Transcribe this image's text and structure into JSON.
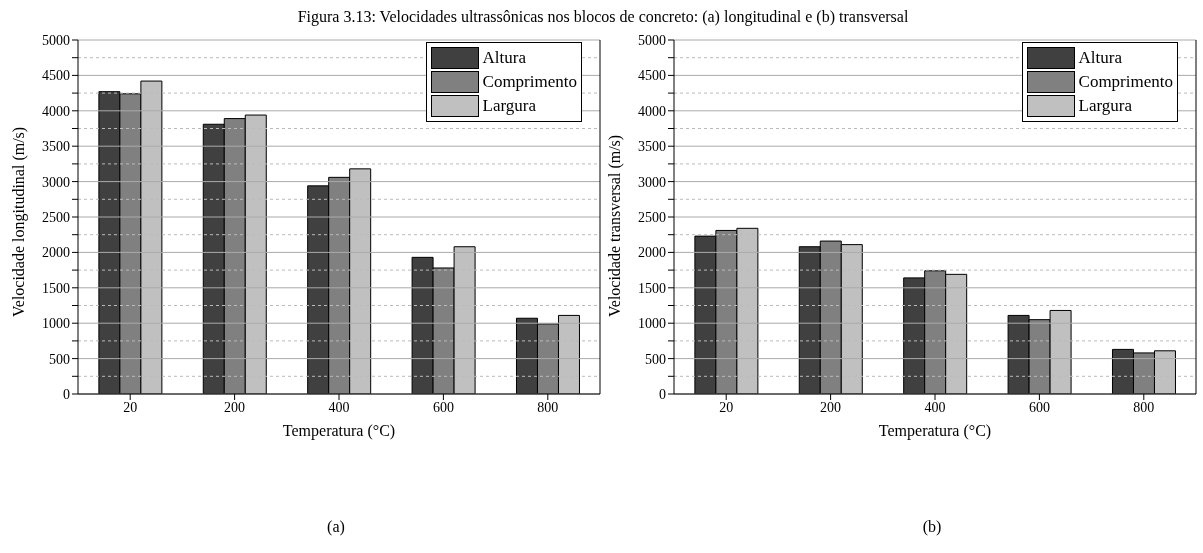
{
  "chart_data": [
    {
      "type": "bar",
      "title": "Figura 3.13: Velocidades ultrassônicas nos blocos de concreto: (a) longitudinal e (b) transversal",
      "xlabel": "Temperatura (°C)",
      "ylabel": "Velocidade longitudinal (m/s)",
      "annotations": [
        "(a)"
      ],
      "categories": [
        "20",
        "200",
        "400",
        "600",
        "800"
      ],
      "series": [
        {
          "name": "Altura",
          "color": "#404040",
          "values": [
            4270,
            3810,
            2940,
            1930,
            1070
          ]
        },
        {
          "name": "Comprimento",
          "color": "#808080",
          "values": [
            4240,
            3890,
            3060,
            1780,
            990
          ]
        },
        {
          "name": "Largura",
          "color": "#c0c0c0",
          "values": [
            4420,
            3940,
            3180,
            2080,
            1110
          ]
        }
      ],
      "ylim": [
        0,
        5000
      ],
      "yticks": [
        0,
        {
          "value": 250,
          "label": null
        },
        500,
        {
          "value": 750,
          "label": null
        },
        1000,
        {
          "value": 1250,
          "label": null
        },
        1500,
        {
          "value": 1750,
          "label": null
        },
        2000,
        {
          "value": 2250,
          "label": null
        },
        2500,
        {
          "value": 2750,
          "label": null
        },
        3000,
        {
          "value": 3250,
          "label": null
        },
        3500,
        {
          "value": 3750,
          "label": null
        },
        4000,
        {
          "value": 4250,
          "label": null
        },
        4500,
        {
          "value": 4750,
          "label": null
        },
        5000
      ],
      "grid": "y",
      "legend": "top right"
    },
    {
      "type": "bar",
      "xlabel": "Temperatura (°C)",
      "ylabel": "Velocidade transversal (m/s)",
      "annotations": [
        "(b)"
      ],
      "categories": [
        "20",
        "200",
        "400",
        "600",
        "800"
      ],
      "series": [
        {
          "name": "Altura",
          "color": "#404040",
          "values": [
            2230,
            2080,
            1640,
            1110,
            630
          ]
        },
        {
          "name": "Comprimento",
          "color": "#808080",
          "values": [
            2310,
            2160,
            1740,
            1050,
            580
          ]
        },
        {
          "name": "Largura",
          "color": "#c0c0c0",
          "values": [
            2340,
            2110,
            1690,
            1180,
            610
          ]
        }
      ],
      "ylim": [
        0,
        5000
      ],
      "yticks": [
        0,
        {
          "value": 250,
          "label": null
        },
        500,
        {
          "value": 750,
          "label": null
        },
        1000,
        {
          "value": 1250,
          "label": null
        },
        1500,
        {
          "value": 1750,
          "label": null
        },
        2000,
        {
          "value": 2250,
          "label": null
        },
        2500,
        {
          "value": 2750,
          "label": null
        },
        3000,
        {
          "value": 3250,
          "label": null
        },
        3500,
        {
          "value": 3750,
          "label": null
        },
        4000,
        {
          "value": 4250,
          "label": null
        },
        4500,
        {
          "value": 4750,
          "label": null
        },
        5000
      ],
      "grid": "y",
      "legend": "top right"
    }
  ]
}
